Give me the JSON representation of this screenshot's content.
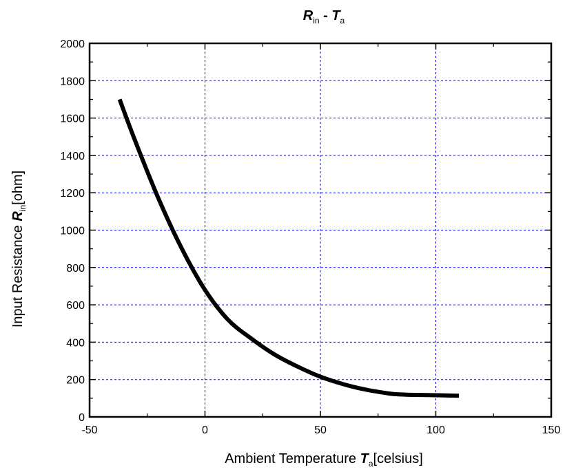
{
  "chart_data": {
    "type": "line",
    "title": {
      "symbol_r": "R",
      "sub_in": "in",
      "separator": " - ",
      "symbol_t": "T",
      "sub_a": "a"
    },
    "xlabel": {
      "prefix": "Ambient Temperature ",
      "symbol": "T",
      "sub": "a",
      "suffix": "[celsius]"
    },
    "ylabel": {
      "prefix": "Input Resistance ",
      "symbol": "R",
      "sub": "in",
      "suffix": "[ohm]"
    },
    "xlim": [
      -50,
      150
    ],
    "ylim": [
      0,
      2000
    ],
    "x_ticks": [
      -50,
      0,
      50,
      100,
      150
    ],
    "y_ticks": [
      0,
      200,
      400,
      600,
      800,
      1000,
      1200,
      1400,
      1600,
      1800,
      2000
    ],
    "grid": true,
    "series": [
      {
        "color": "#000000",
        "x": [
          -37,
          -30,
          -20,
          -10,
          0,
          10,
          20,
          30,
          40,
          50,
          60,
          70,
          80,
          85,
          90,
          100,
          110
        ],
        "y": [
          1700,
          1470,
          1165,
          900,
          680,
          520,
          420,
          335,
          270,
          215,
          175,
          145,
          125,
          120,
          118,
          116,
          113
        ]
      }
    ],
    "colors": {
      "grid": "#0000ff",
      "axis": "#000000",
      "line": "#000000"
    }
  }
}
